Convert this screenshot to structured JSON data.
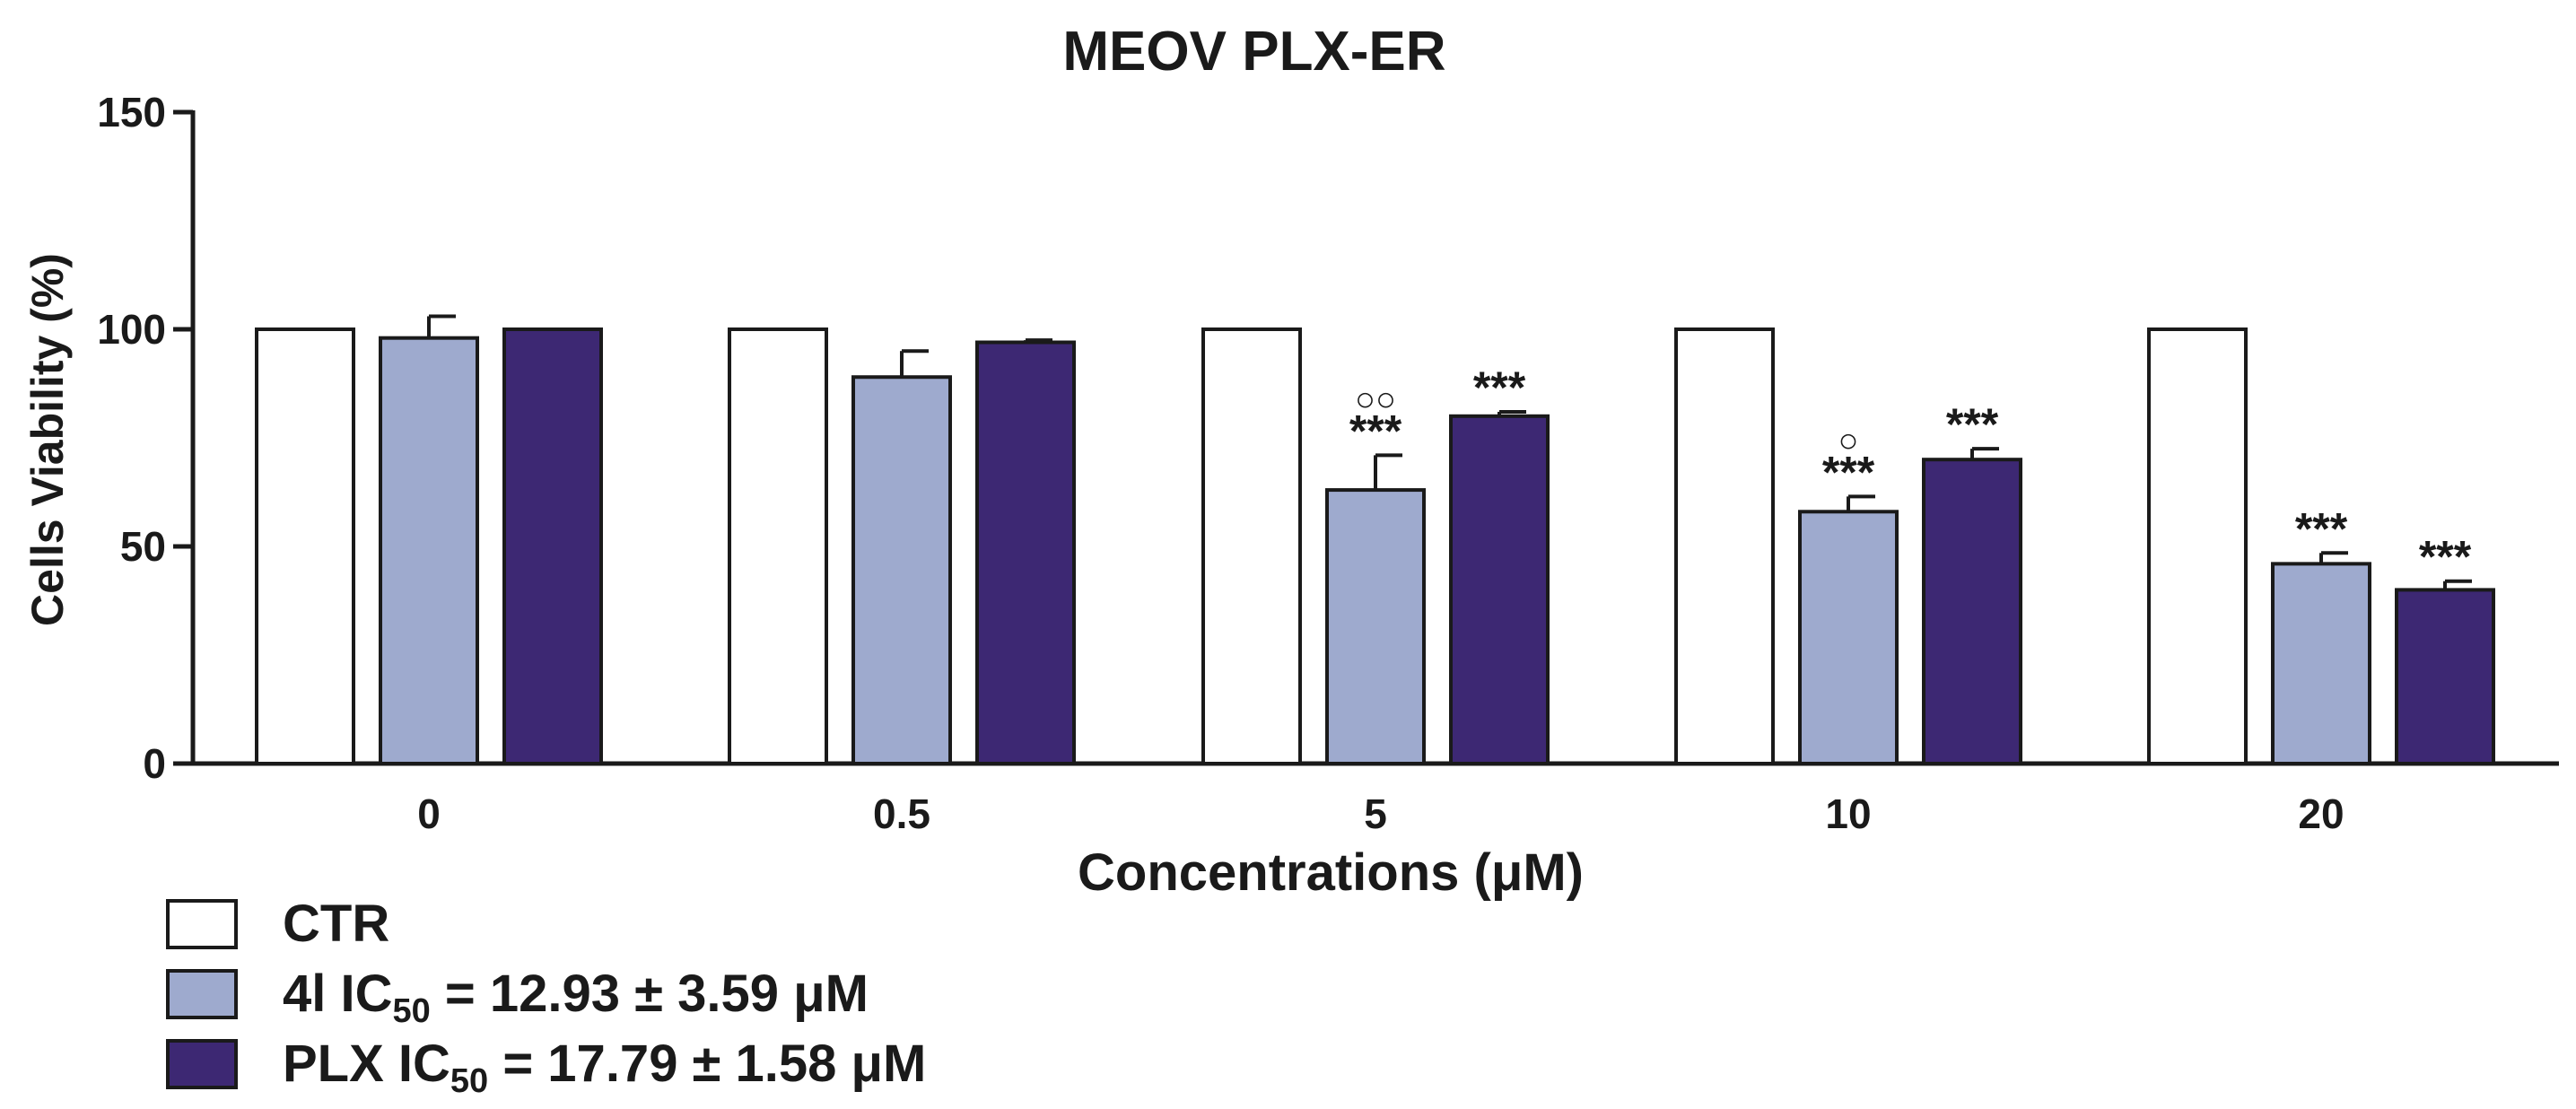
{
  "chart_data": {
    "type": "bar",
    "title": "MEOV PLX-ER",
    "xlabel": "Concentrations (μM)",
    "ylabel": "Cells Viability (%)",
    "ylim": [
      0,
      150
    ],
    "yticks": [
      "0",
      "50",
      "100",
      "150"
    ],
    "categories": [
      "0",
      "0.5",
      "5",
      "10",
      "20"
    ],
    "series": [
      {
        "name": "CTR",
        "color": "#ffffff",
        "values": [
          100,
          100,
          100,
          100,
          100
        ],
        "errors": [
          0,
          0,
          0,
          0,
          0
        ],
        "annotations": [
          "",
          "",
          "",
          "",
          ""
        ],
        "markers": [
          "",
          "",
          "",
          "",
          ""
        ]
      },
      {
        "name": "4l IC50 = 12.93 ± 3.59 μM",
        "color": "#9eaace",
        "values": [
          98,
          89,
          63,
          58,
          46
        ],
        "errors": [
          5,
          6,
          8,
          3.5,
          2.5
        ],
        "annotations": [
          "",
          "",
          "***",
          "***",
          "***"
        ],
        "markers": [
          "",
          "",
          "○○",
          "○",
          ""
        ]
      },
      {
        "name": "PLX IC50 = 17.79 ± 1.58 μM",
        "color": "#3d2873",
        "values": [
          100,
          97,
          80,
          70,
          40
        ],
        "errors": [
          0,
          0.5,
          1,
          2.5,
          2
        ],
        "annotations": [
          "",
          "",
          "***",
          "***",
          "***"
        ],
        "markers": [
          "",
          "",
          "",
          "",
          ""
        ]
      }
    ],
    "legend": {
      "placement": "bottom-left",
      "items": [
        {
          "prefix": "CTR",
          "sub": "",
          "suffix": ""
        },
        {
          "prefix": "4l IC",
          "sub": "50",
          "suffix": " = 12.93 ± 3.59 μM"
        },
        {
          "prefix": "PLX IC",
          "sub": "50",
          "suffix": " = 17.79 ± 1.58 μM"
        }
      ]
    }
  }
}
